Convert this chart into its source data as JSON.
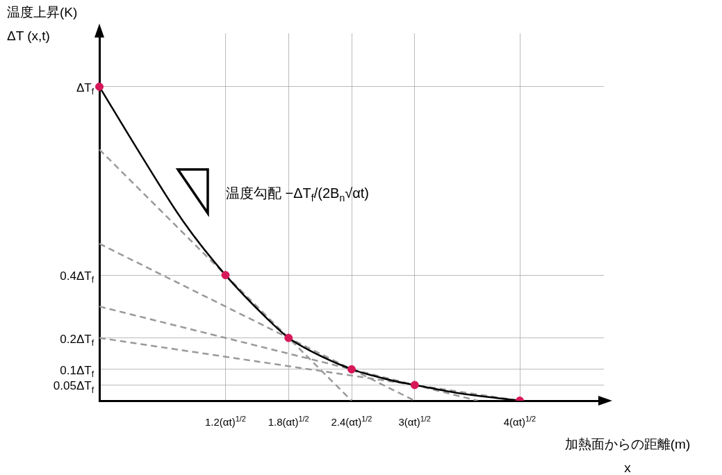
{
  "chart_data": {
    "type": "line",
    "ylabel": "温度上昇(K)\nΔT (x,t)",
    "xlabel": "加熱面からの距離(m)\nx",
    "annotations": [
      "温度勾配 −ΔT$_{f}$/(2B$_{n}$√αt)"
    ],
    "categories": [
      null,
      null,
      null,
      null,
      null,
      null,
      "1.2(αt)$^{1/2}$",
      null,
      null,
      "1.8(αt)$^{1/2}$",
      null,
      null,
      "2.4(αt)$^{1/2}$",
      null,
      null,
      "3(αt)$^{1/2}$",
      null,
      null,
      null,
      null,
      "4(αt)$^{1/2}$",
      null,
      null,
      null,
      null
    ],
    "ylim": [
      0,
      1.17
    ],
    "yticks": [
      {
        "value": 0.05,
        "label": "0.05ΔT$_{f}$"
      },
      {
        "value": 0.1,
        "label": "0.1ΔT$_{f}$"
      },
      {
        "value": 0.2,
        "label": "0.2ΔT$_{f}$"
      },
      {
        "value": 0.4,
        "label": "0.4ΔT$_{f}$"
      },
      {
        "value": 1,
        "label": "ΔT$_{f}$"
      }
    ],
    "grid": true,
    "series": [
      {
        "type": "line",
        "color": "#000000",
        "marker": "none",
        "line_style": "solid",
        "values": [
          1,
          null,
          0.78,
          null,
          0.57,
          null,
          0.4,
          null,
          0.26,
          0.2,
          0.16,
          null,
          0.1,
          0.08,
          0.063,
          0.05,
          null,
          0.025,
          null,
          null,
          0,
          null,
          null,
          null,
          null
        ]
      },
      {
        "type": "line",
        "color": "#999999",
        "marker": "none",
        "line_style": "dashed",
        "values": [
          0.8,
          null,
          null,
          null,
          null,
          null,
          null,
          null,
          null,
          null,
          null,
          null,
          0,
          null,
          null,
          null,
          null,
          null,
          null,
          null,
          null,
          null,
          null,
          null,
          null
        ]
      },
      {
        "type": "line",
        "color": "#999999",
        "marker": "none",
        "line_style": "dashed",
        "values": [
          0.5,
          null,
          null,
          null,
          null,
          null,
          null,
          null,
          null,
          null,
          null,
          null,
          null,
          null,
          null,
          0,
          null,
          null,
          null,
          null,
          null,
          null,
          null,
          null,
          null
        ]
      },
      {
        "type": "line",
        "color": "#999999",
        "marker": "none",
        "line_style": "dashed",
        "values": [
          0.3,
          null,
          null,
          null,
          null,
          null,
          null,
          null,
          null,
          null,
          null,
          null,
          null,
          null,
          null,
          null,
          null,
          null,
          0,
          null,
          null,
          null,
          null,
          null,
          null
        ]
      },
      {
        "type": "line",
        "color": "#999999",
        "marker": "none",
        "line_style": "dashed",
        "values": [
          0.2,
          null,
          null,
          null,
          null,
          null,
          null,
          null,
          null,
          null,
          null,
          null,
          null,
          null,
          null,
          null,
          null,
          null,
          null,
          null,
          0,
          null,
          null,
          null,
          null
        ]
      },
      {
        "type": "scatter",
        "color": "#d6185a",
        "marker": "circle",
        "values": [
          1,
          null,
          null,
          null,
          null,
          null,
          0.4,
          null,
          null,
          0.2,
          null,
          null,
          0.1,
          null,
          null,
          0.05,
          null,
          null,
          null,
          null,
          0,
          null,
          null,
          null,
          null
        ]
      }
    ]
  }
}
